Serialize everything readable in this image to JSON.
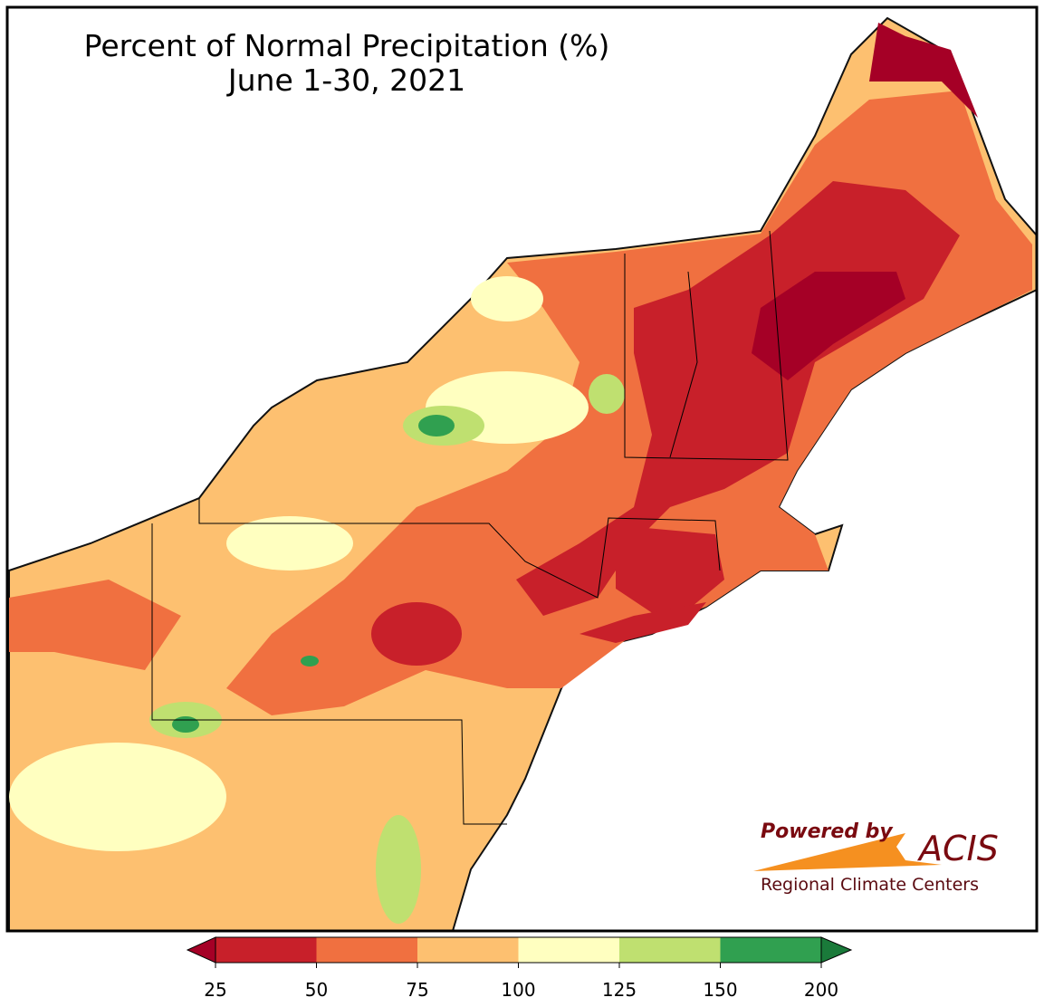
{
  "map": {
    "title": "Percent of Normal Precipitation (%)",
    "subtitle": "June 1-30, 2021",
    "colorbar": {
      "ticks": [
        25,
        50,
        75,
        100,
        125,
        150,
        200
      ],
      "colors": [
        "#c8202a",
        "#f07040",
        "#fdc070",
        "#ffffc0",
        "#bfe070",
        "#30a050"
      ],
      "under_color": "#a50026",
      "over_color": "#1a7a3a"
    },
    "logo": {
      "powered": "Powered by",
      "name": "ACIS",
      "network": "Regional Climate Centers"
    }
  }
}
